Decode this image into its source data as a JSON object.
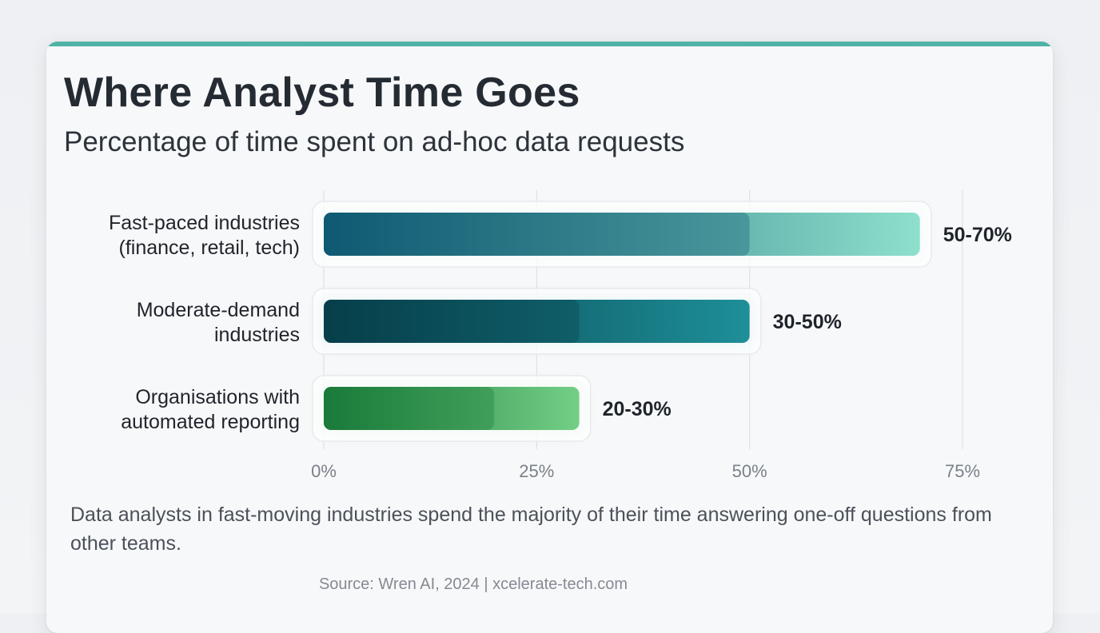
{
  "header": {
    "title": "Where Analyst Time Goes",
    "subtitle": "Percentage of time spent on ad-hoc data requests"
  },
  "chart_data": {
    "type": "bar",
    "orientation": "horizontal",
    "categories": [
      [
        "Fast-paced industries",
        "(finance, retail, tech)"
      ],
      [
        "Moderate-demand",
        "industries"
      ],
      [
        "Organisations with",
        "automated reporting"
      ]
    ],
    "ranges": [
      [
        50,
        70
      ],
      [
        30,
        50
      ],
      [
        20,
        30
      ]
    ],
    "value_labels": [
      "50-70%",
      "30-50%",
      "20-30%"
    ],
    "xlim": [
      0,
      75
    ],
    "xticks": [
      0,
      25,
      50,
      75
    ],
    "xtick_labels": [
      "0%",
      "25%",
      "50%",
      "75%"
    ],
    "grid": "vertical",
    "colors": {
      "fast": [
        "#0f5a72",
        "#8ee0cc"
      ],
      "moderate": [
        "#073f4a",
        "#1e8f98"
      ],
      "automated": [
        "#1a7a3a",
        "#74cf86"
      ]
    }
  },
  "footer": {
    "note": "Data analysts in fast-moving industries spend the majority of their time answering one-off questions from other teams.",
    "source": "Source: Wren AI, 2024 | xcelerate-tech.com"
  },
  "colors": {
    "accent": "#4fb3a5",
    "title": "#252b33"
  }
}
